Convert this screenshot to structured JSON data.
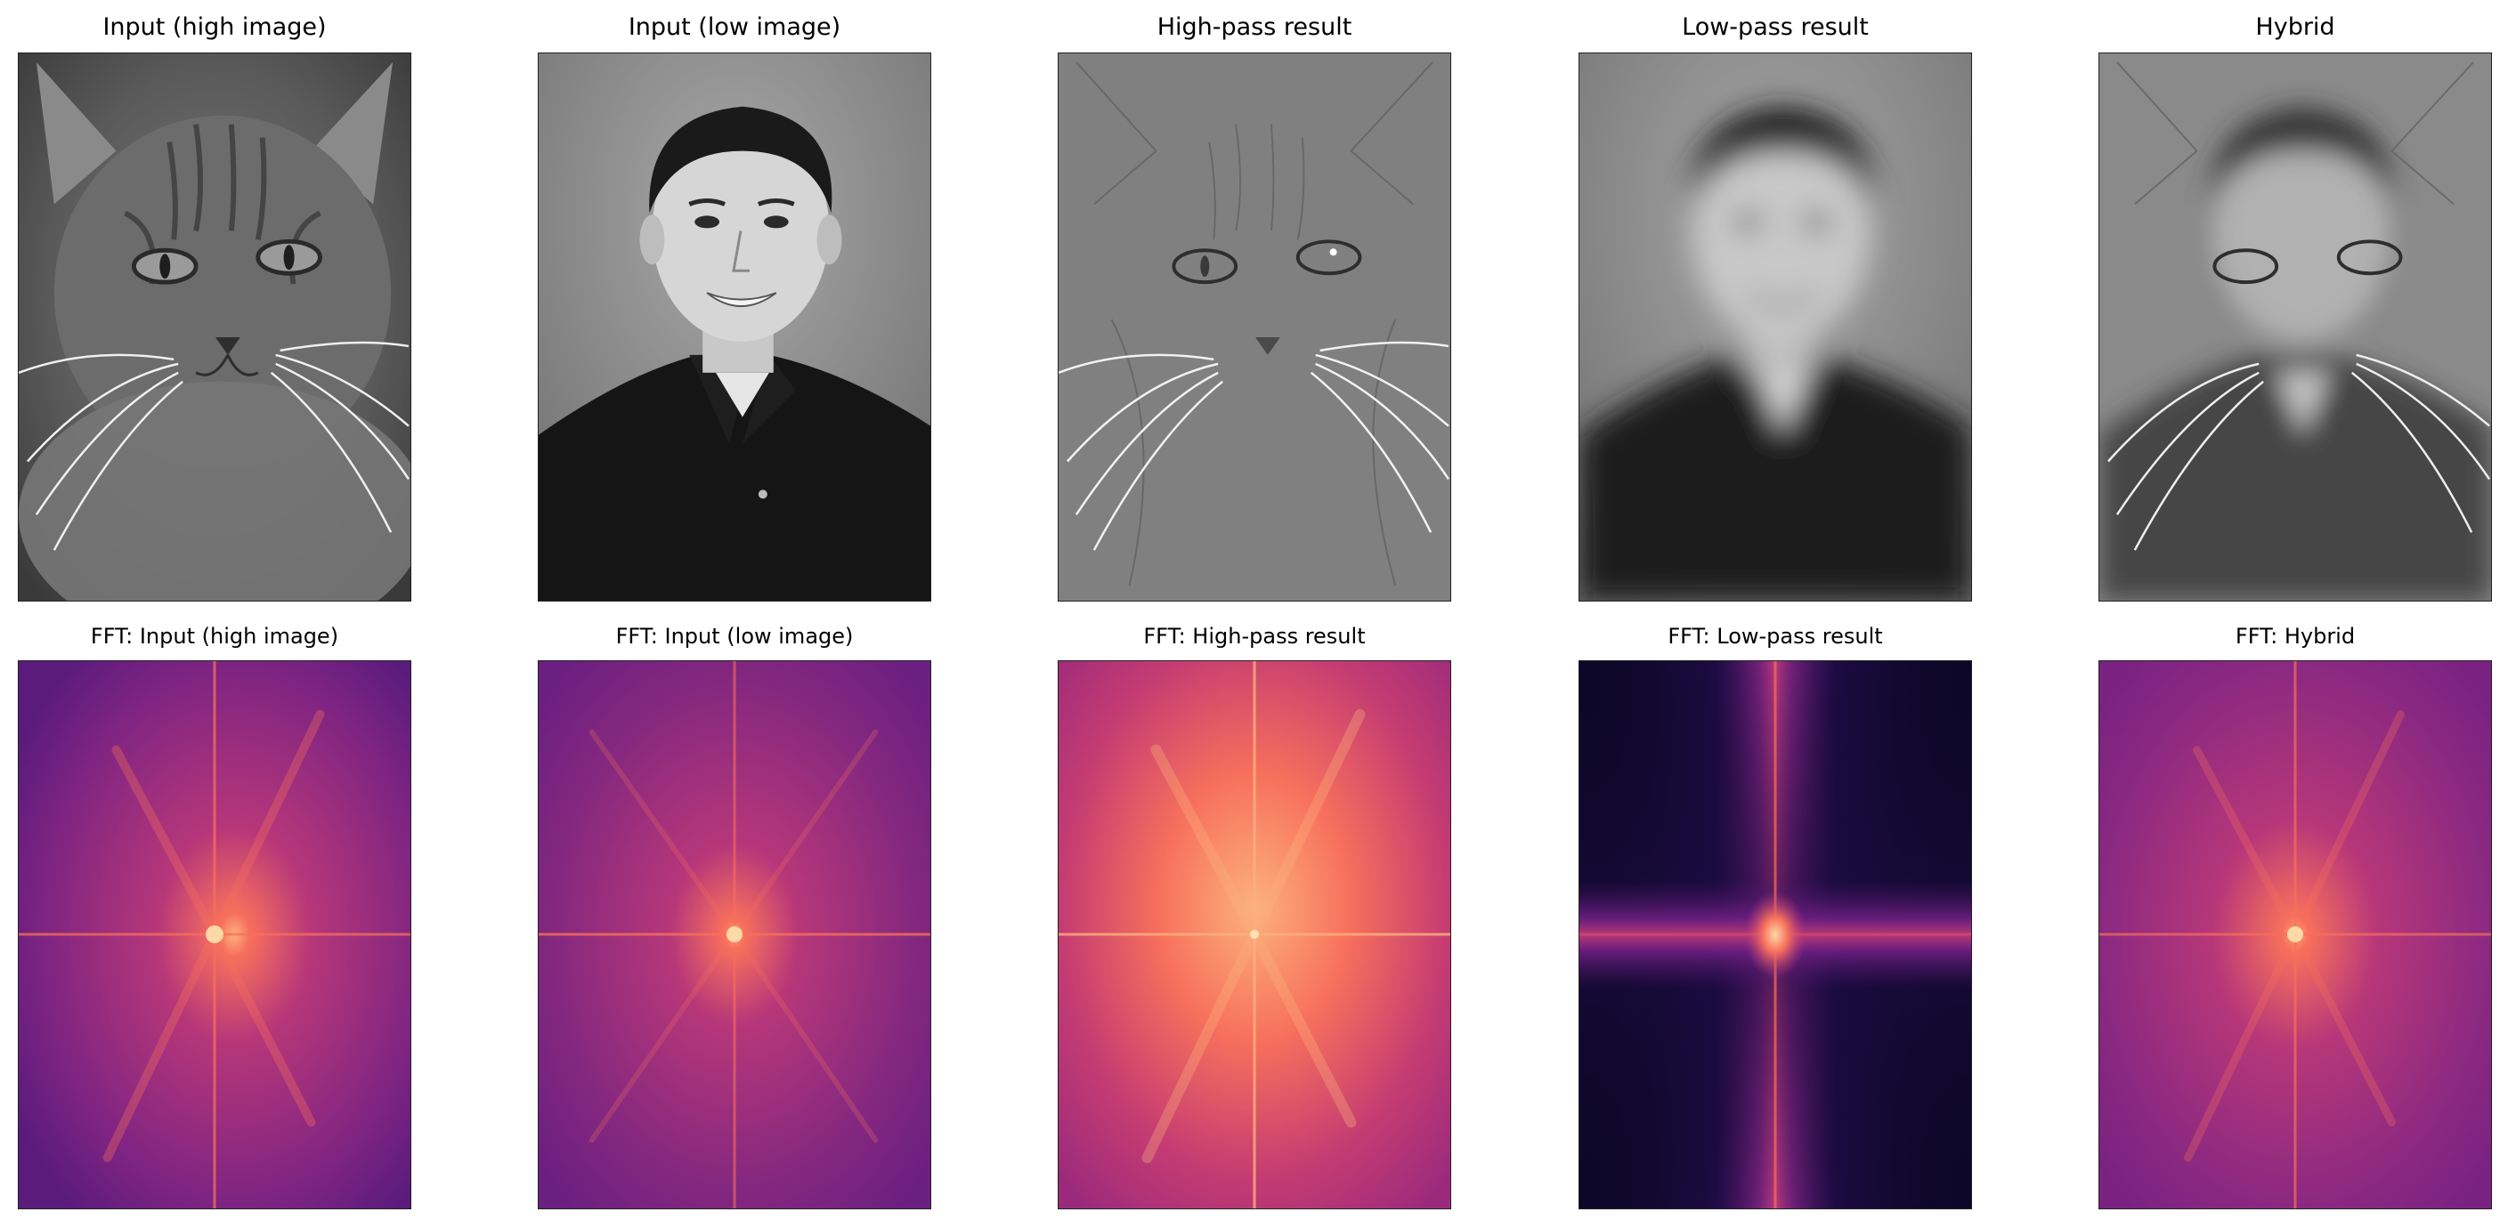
{
  "panels": {
    "top": [
      {
        "title": "Input (high image)"
      },
      {
        "title": "Input (low image)"
      },
      {
        "title": "High-pass result"
      },
      {
        "title": "Low-pass result"
      },
      {
        "title": "Hybrid"
      }
    ],
    "bottom": [
      {
        "title": "FFT: Input (high image)"
      },
      {
        "title": "FFT: Input (low image)"
      },
      {
        "title": "FFT: High-pass result"
      },
      {
        "title": "FFT: Low-pass result"
      },
      {
        "title": "FFT: Hybrid"
      }
    ]
  },
  "colors": {
    "magma_dark": "#0d0829",
    "magma_purple": "#7e2482",
    "magma_magenta": "#b73779",
    "magma_orange": "#f7705c",
    "magma_light": "#fcb17e"
  }
}
